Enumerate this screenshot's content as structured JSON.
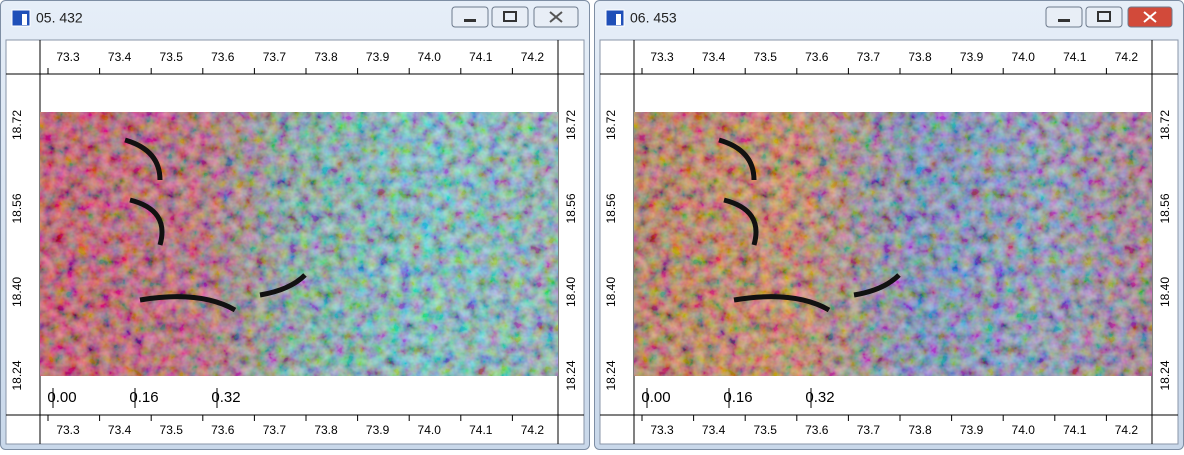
{
  "windows": [
    {
      "title": "05. 432",
      "top_ticks": [
        "73.3",
        "73.4",
        "73.5",
        "73.6",
        "73.7",
        "73.8",
        "73.9",
        "74.0",
        "74.1",
        "74.2"
      ],
      "bottom_ticks": [
        "73.3",
        "73.4",
        "73.5",
        "73.6",
        "73.7",
        "73.8",
        "73.9",
        "74.0",
        "74.1",
        "74.2"
      ],
      "left_ticks": [
        "18.72",
        "18.56",
        "18.40",
        "18.24"
      ],
      "right_ticks": [
        "18.72",
        "18.56",
        "18.40",
        "18.24"
      ],
      "scale_labels": [
        "0.00",
        "0.16",
        "0.32"
      ]
    },
    {
      "title": "06. 453",
      "top_ticks": [
        "73.3",
        "73.4",
        "73.5",
        "73.6",
        "73.7",
        "73.8",
        "73.9",
        "74.0",
        "74.1",
        "74.2"
      ],
      "bottom_ticks": [
        "73.3",
        "73.4",
        "73.5",
        "73.6",
        "73.7",
        "73.8",
        "73.9",
        "74.0",
        "74.1",
        "74.2"
      ],
      "left_ticks": [
        "18.72",
        "18.56",
        "18.40",
        "18.24"
      ],
      "right_ticks": [
        "18.72",
        "18.56",
        "18.40",
        "18.24"
      ],
      "scale_labels": [
        "0.00",
        "0.16",
        "0.32"
      ]
    }
  ]
}
